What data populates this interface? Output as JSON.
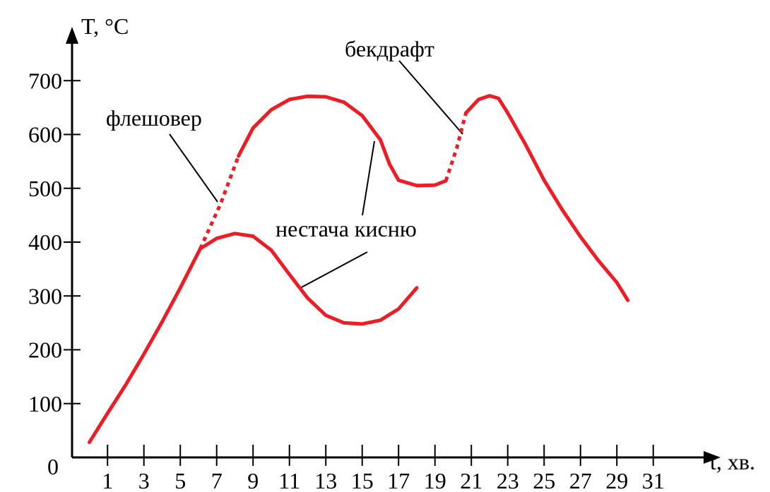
{
  "chart_data": {
    "type": "line",
    "xlabel": "t, хв.",
    "ylabel": "T, °C",
    "xlim": [
      -0.95,
      34.7
    ],
    "ylim": [
      0,
      800
    ],
    "xticks": [
      1,
      3,
      5,
      7,
      9,
      11,
      13,
      15,
      17,
      19,
      21,
      23,
      25,
      27,
      29,
      31
    ],
    "yticks": [
      0,
      100,
      200,
      300,
      400,
      500,
      600,
      700
    ],
    "annotations": [
      "флешовер",
      "бекдрафт",
      "нестача кисню"
    ],
    "series": [
      {
        "color": "#ee1c24",
        "dashed": false,
        "x": [
          0,
          1,
          2,
          3,
          4,
          5,
          6.1
        ],
        "values": [
          28,
          82,
          135,
          192,
          252,
          315,
          388
        ]
      },
      {
        "color": "#ee1c24",
        "dashed": false,
        "x": [
          6.1,
          7,
          8,
          9,
          10,
          11,
          12,
          13,
          14,
          15,
          16,
          17,
          18
        ],
        "values": [
          388,
          407,
          416,
          411,
          385,
          340,
          296,
          264,
          250,
          248,
          255,
          276,
          315
        ]
      },
      {
        "color": "#ee1c24",
        "dashed": true,
        "x": [
          6.1,
          7.2,
          8.2
        ],
        "values": [
          388,
          470,
          560
        ]
      },
      {
        "color": "#ee1c24",
        "dashed": false,
        "x": [
          8.2,
          9,
          10,
          11,
          12,
          13,
          14,
          15,
          16,
          16.5,
          17,
          18,
          19,
          19.6
        ],
        "values": [
          560,
          612,
          646,
          665,
          671,
          670,
          660,
          635,
          590,
          545,
          515,
          505,
          506,
          514
        ]
      },
      {
        "color": "#ee1c24",
        "dashed": true,
        "x": [
          19.6,
          20.2,
          20.7
        ],
        "values": [
          514,
          575,
          640
        ]
      },
      {
        "color": "#ee1c24",
        "dashed": false,
        "x": [
          20.7,
          21.4,
          22,
          22.5,
          23,
          24,
          25,
          26,
          27,
          28,
          29,
          29.6
        ],
        "values": [
          640,
          665,
          672,
          667,
          640,
          580,
          515,
          460,
          410,
          365,
          325,
          292
        ]
      }
    ]
  }
}
